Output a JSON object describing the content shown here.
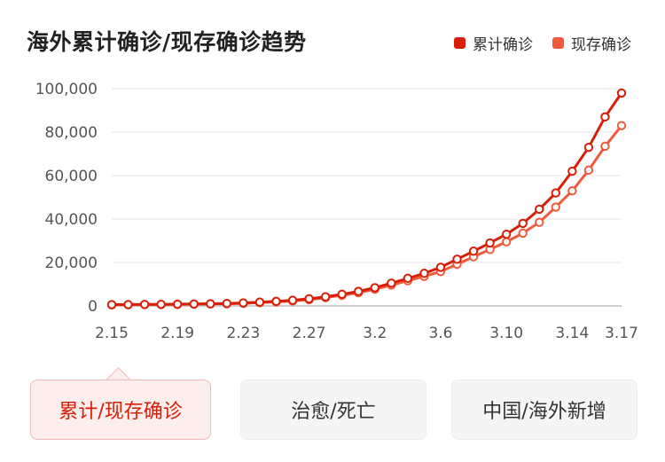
{
  "title": "海外累计确诊/现存确诊趋势",
  "legend": [
    {
      "label": "累计确诊",
      "color": "#d81e06"
    },
    {
      "label": "现存确诊",
      "color": "#f05a3c"
    }
  ],
  "tabs": [
    {
      "label": "累计/现存确诊",
      "active": true
    },
    {
      "label": "治愈/死亡",
      "active": false
    },
    {
      "label": "中国/海外新增",
      "active": false
    }
  ],
  "chart_data": {
    "type": "line",
    "title": "海外累计确诊/现存确诊趋势",
    "categories": [
      "2.15",
      "2.16",
      "2.17",
      "2.18",
      "2.19",
      "2.20",
      "2.21",
      "2.22",
      "2.23",
      "2.24",
      "2.25",
      "2.26",
      "2.27",
      "2.28",
      "2.29",
      "3.1",
      "3.2",
      "3.3",
      "3.4",
      "3.5",
      "3.6",
      "3.7",
      "3.8",
      "3.9",
      "3.10",
      "3.11",
      "3.12",
      "3.13",
      "3.14",
      "3.15",
      "3.16",
      "3.17"
    ],
    "x_tick_labels": [
      "2.15",
      "2.19",
      "2.23",
      "2.27",
      "3.2",
      "3.6",
      "3.10",
      "3.14",
      "3.17"
    ],
    "y_tick_labels": [
      "0",
      "20,000",
      "40,000",
      "60,000",
      "80,000",
      "100,000"
    ],
    "ylim": [
      0,
      100000
    ],
    "grid": true,
    "legend_position": "top-right",
    "series": [
      {
        "name": "累计确诊",
        "color": "#d81e06",
        "values": [
          600,
          650,
          700,
          750,
          800,
          900,
          1000,
          1150,
          1400,
          1750,
          2100,
          2600,
          3300,
          4200,
          5400,
          6700,
          8400,
          10500,
          12700,
          15000,
          17800,
          21500,
          25200,
          29000,
          33000,
          38000,
          44500,
          52000,
          62000,
          73000,
          87000,
          98000
        ]
      },
      {
        "name": "现存确诊",
        "color": "#f05a3c",
        "values": [
          500,
          550,
          600,
          650,
          700,
          800,
          900,
          1000,
          1200,
          1500,
          1850,
          2300,
          2900,
          3800,
          4900,
          6100,
          7700,
          9600,
          11600,
          13600,
          15800,
          19200,
          22600,
          26000,
          29500,
          33500,
          38500,
          45500,
          53000,
          62500,
          73500,
          83000
        ]
      }
    ]
  }
}
